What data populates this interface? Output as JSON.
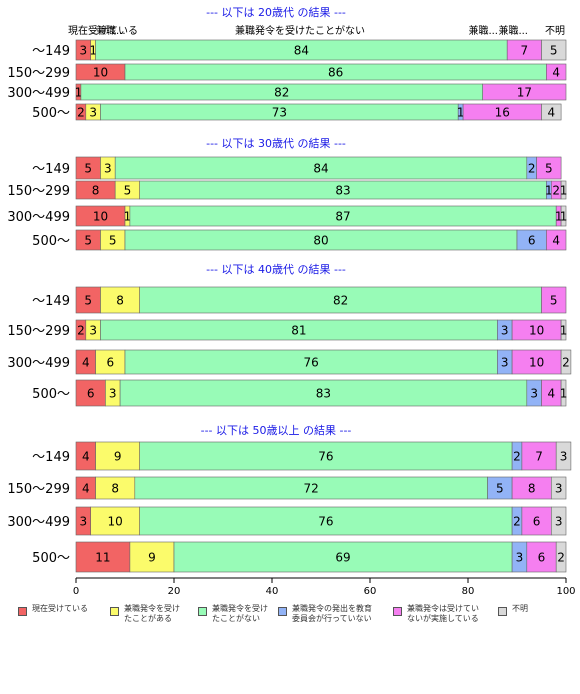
{
  "chart_data": {
    "type": "bar",
    "orientation": "horizontal-stacked",
    "xlim": [
      0,
      100
    ],
    "x_ticks": [
      "0",
      "20",
      "40",
      "60",
      "80",
      "100"
    ],
    "header_labels": [
      "現在受けている",
      "兼職...",
      "兼職発令を受けたことがない",
      "兼職...",
      "兼職...",
      "不明"
    ],
    "legend": [
      {
        "label": "現在受けている",
        "color": "#f26464"
      },
      {
        "label": "兼職発令を受け\nたことがある",
        "color": "#fbfb6b"
      },
      {
        "label": "兼職発令を受け\nたことがない",
        "color": "#98fbb7"
      },
      {
        "label": "兼職発令の発出を教育\n委員会が行っていない",
        "color": "#92b3f6"
      },
      {
        "label": "兼職発令は受けてい\nないが実施している",
        "color": "#f57ff0"
      },
      {
        "label": "不明",
        "color": "#d9d9d9"
      }
    ],
    "groups": [
      {
        "title": "--- 以下は 20歳代 の結果 ---",
        "rows": [
          {
            "category": "～149",
            "values": [
              3,
              1,
              84,
              0,
              7,
              5
            ]
          },
          {
            "category": "150～299",
            "values": [
              10,
              0,
              86,
              0,
              4,
              0
            ]
          },
          {
            "category": "300～499",
            "values": [
              1,
              0,
              82,
              0,
              17,
              0
            ]
          },
          {
            "category": "500～",
            "values": [
              2,
              3,
              73,
              1,
              16,
              4
            ]
          }
        ]
      },
      {
        "title": "--- 以下は 30歳代 の結果 ---",
        "rows": [
          {
            "category": "～149",
            "values": [
              5,
              3,
              84,
              2,
              5,
              0
            ]
          },
          {
            "category": "150～299",
            "values": [
              8,
              5,
              83,
              1,
              2,
              1
            ]
          },
          {
            "category": "300～499",
            "values": [
              10,
              1,
              87,
              0,
              1,
              1
            ]
          },
          {
            "category": "500～",
            "values": [
              5,
              5,
              80,
              6,
              4,
              0
            ]
          }
        ]
      },
      {
        "title": "--- 以下は 40歳代 の結果 ---",
        "rows": [
          {
            "category": "～149",
            "values": [
              5,
              8,
              82,
              0,
              5,
              0
            ]
          },
          {
            "category": "150～299",
            "values": [
              2,
              3,
              81,
              3,
              10,
              1
            ]
          },
          {
            "category": "300～499",
            "values": [
              4,
              6,
              76,
              3,
              10,
              2
            ]
          },
          {
            "category": "500～",
            "values": [
              6,
              3,
              83,
              3,
              4,
              1
            ]
          }
        ]
      },
      {
        "title": "--- 以下は 50歳以上 の結果 ---",
        "rows": [
          {
            "category": "～149",
            "values": [
              4,
              9,
              76,
              2,
              7,
              3
            ]
          },
          {
            "category": "150～299",
            "values": [
              4,
              8,
              72,
              5,
              8,
              3
            ]
          },
          {
            "category": "300～499",
            "values": [
              3,
              10,
              76,
              2,
              6,
              3
            ]
          },
          {
            "category": "500～",
            "values": [
              11,
              9,
              69,
              3,
              6,
              2
            ]
          }
        ]
      }
    ]
  }
}
